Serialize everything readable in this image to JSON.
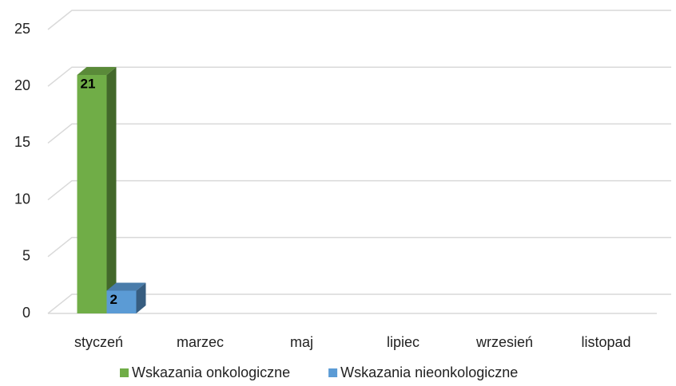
{
  "chart_data": {
    "type": "bar3d",
    "categories": [
      "styczeń",
      "marzec",
      "maj",
      "lipiec",
      "wrzesień",
      "listopad"
    ],
    "series": [
      {
        "name": "Wskazania onkologiczne",
        "color": "#70ad47",
        "values": [
          21,
          null,
          null,
          null,
          null,
          null
        ]
      },
      {
        "name": "Wskazania nieonkologiczne",
        "color": "#5b9bd5",
        "values": [
          2,
          null,
          null,
          null,
          null,
          null
        ]
      }
    ],
    "ylim": [
      0,
      25
    ],
    "yticks": [
      0,
      5,
      10,
      15,
      20,
      25
    ],
    "grid": true,
    "legend": "bottom"
  }
}
